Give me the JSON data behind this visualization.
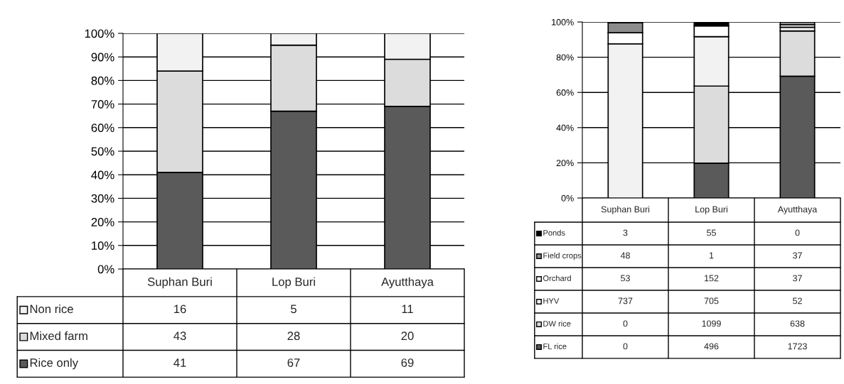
{
  "chart_data": [
    {
      "type": "bar",
      "stacked": true,
      "categories": [
        "Suphan Buri",
        "Lop Buri",
        "Ayutthaya"
      ],
      "ylim": [
        0,
        100
      ],
      "yticks": [
        {
          "value": 0,
          "label": "0%"
        },
        {
          "value": 10,
          "label": "10%"
        },
        {
          "value": 20,
          "label": "20%"
        },
        {
          "value": 30,
          "label": "30%"
        },
        {
          "value": 40,
          "label": "40%"
        },
        {
          "value": 50,
          "label": "50%"
        },
        {
          "value": 60,
          "label": "60%"
        },
        {
          "value": 70,
          "label": "70%"
        },
        {
          "value": 80,
          "label": "80%"
        },
        {
          "value": 90,
          "label": "90%"
        },
        {
          "value": 100,
          "label": "100%"
        }
      ],
      "grid": "y",
      "legend": "bottom",
      "data_labels": true,
      "series": [
        {
          "name": "Rice only",
          "color": "#5a5a5a",
          "values": [
            41,
            67,
            69
          ]
        },
        {
          "name": "Mixed farm",
          "color": "#dcdcdc",
          "values": [
            43,
            28,
            20
          ]
        },
        {
          "name": "Non rice",
          "color": "#f2f2f2",
          "values": [
            16,
            5,
            11
          ]
        }
      ]
    },
    {
      "type": "bar",
      "stacked": true,
      "categories": [
        "Suphan Buri",
        "Lop Buri",
        "Ayutthaya"
      ],
      "ylim": [
        0,
        100
      ],
      "yticks": [
        {
          "value": 0,
          "label": "0%"
        },
        {
          "value": 20,
          "label": "20%"
        },
        {
          "value": 40,
          "label": "40%"
        },
        {
          "value": 60,
          "label": "60%"
        },
        {
          "value": 80,
          "label": "80%"
        },
        {
          "value": 100,
          "label": "100%"
        }
      ],
      "grid": "y",
      "legend": "bottom",
      "annotations": [
        "3",
        "55",
        "0",
        "48",
        "1",
        "37",
        "53",
        "152",
        "37",
        "737",
        "705",
        "52",
        "0",
        "1099",
        "638",
        "0",
        "496",
        "1723"
      ],
      "series": [
        {
          "name": "FL rice",
          "color": "#5a5a5a",
          "values": [
            0,
            19.8,
            69.2
          ]
        },
        {
          "name": "DW rice",
          "color": "#dcdcdc",
          "values": [
            0,
            43.8,
            25.7
          ]
        },
        {
          "name": "HYV",
          "color": "#f2f2f2",
          "values": [
            87.6,
            28.1,
            2.1
          ]
        },
        {
          "name": "Orchard",
          "color": "#ffffff",
          "values": [
            6.3,
            6.1,
            1.5
          ]
        },
        {
          "name": "Field crops",
          "color": "#8c8c8c",
          "values": [
            5.7,
            0.0,
            1.5
          ]
        },
        {
          "name": "Ponds",
          "color": "#000000",
          "values": [
            0.4,
            2.2,
            0.0
          ]
        }
      ]
    }
  ]
}
